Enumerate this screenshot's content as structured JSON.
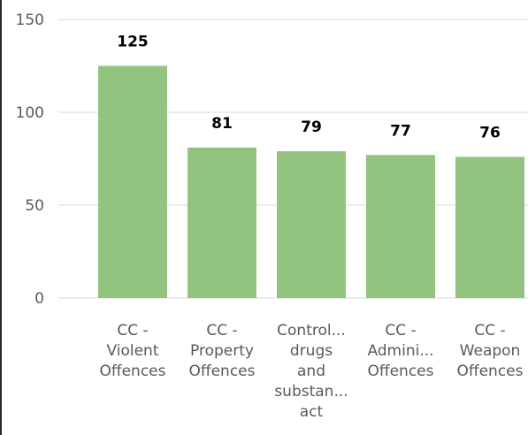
{
  "chart_data": {
    "type": "bar",
    "categories": [
      [
        "CC -",
        "Violent",
        "Offences"
      ],
      [
        "CC -",
        "Property",
        "Offences"
      ],
      [
        "Control...",
        "drugs",
        "and",
        "substan...",
        "act"
      ],
      [
        "CC -",
        "Admini...",
        "Offences"
      ],
      [
        "CC -",
        "Weapon",
        "Offences"
      ]
    ],
    "values": [
      125,
      81,
      79,
      77,
      76
    ],
    "data_labels": [
      "125",
      "81",
      "79",
      "77",
      "76"
    ],
    "ylim": [
      0,
      150
    ],
    "yticks": [
      {
        "value": 0,
        "label": "0"
      },
      {
        "value": 50,
        "label": "50"
      },
      {
        "value": 100,
        "label": "100"
      },
      {
        "value": 150,
        "label": "150"
      }
    ],
    "grid": true,
    "legend": "none",
    "colors": {
      "bar": "#92c47f",
      "grid": "#d9d9d9",
      "tick_text": "#595959",
      "data_label_text": "#000000"
    }
  }
}
